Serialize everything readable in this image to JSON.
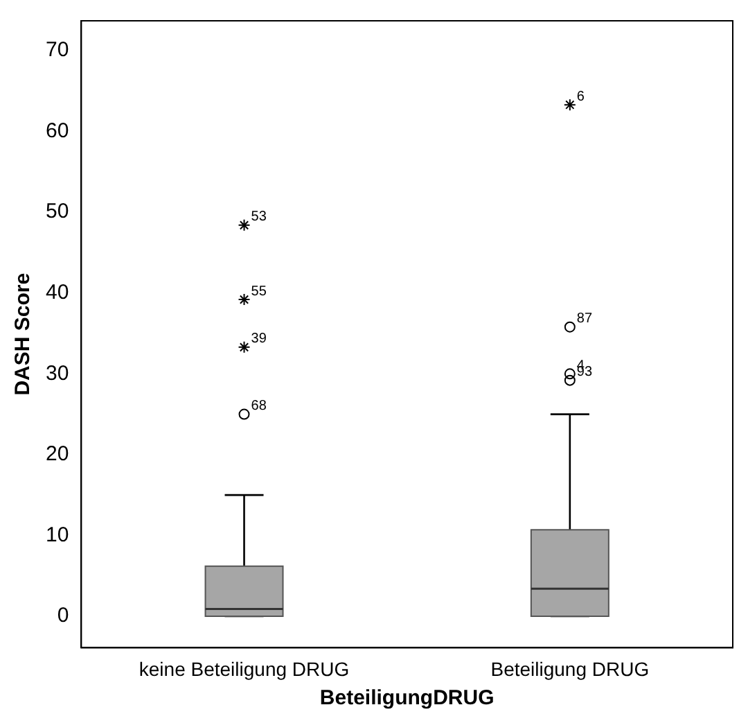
{
  "chart_data": {
    "type": "box",
    "xlabel": "BeteiligungDRUG",
    "ylabel": "DASH Score",
    "categories": [
      "keine Beteiligung DRUG",
      "Beteiligung DRUG"
    ],
    "series": [
      {
        "type": "box",
        "color": "#a6a6a6",
        "boxes": [
          {
            "low": 0,
            "q1": 0,
            "median": 0.9,
            "q3": 6.2,
            "high": 15
          },
          {
            "low": 0,
            "q1": 0,
            "median": 3.4,
            "q3": 10.7,
            "high": 25
          }
        ]
      },
      {
        "type": "scatter",
        "marker": "circle",
        "color": "#000000",
        "x": [
          "keine Beteiligung DRUG",
          "Beteiligung DRUG",
          "Beteiligung DRUG",
          "Beteiligung DRUG"
        ],
        "values": [
          25,
          35.8,
          30,
          29.2
        ]
      },
      {
        "type": "scatter",
        "marker": "cross",
        "color": "#000000",
        "x": [
          "keine Beteiligung DRUG",
          "keine Beteiligung DRUG",
          "keine Beteiligung DRUG",
          "Beteiligung DRUG"
        ],
        "values": [
          48.4,
          39.2,
          33.3,
          63.3
        ]
      }
    ],
    "ylim": [
      -3.9,
      73.7
    ],
    "yticks": [
      0,
      10,
      20,
      30,
      40,
      50,
      60,
      70
    ],
    "grid": false,
    "legend": false,
    "annotations": [
      {
        "text": "53",
        "x": "keine Beteiligung DRUG",
        "y": 48.4
      },
      {
        "text": "55",
        "x": "keine Beteiligung DRUG",
        "y": 39.2
      },
      {
        "text": "39",
        "x": "keine Beteiligung DRUG",
        "y": 33.3
      },
      {
        "text": "68",
        "x": "keine Beteiligung DRUG",
        "y": 25
      },
      {
        "text": "6",
        "x": "Beteiligung DRUG",
        "y": 63.3
      },
      {
        "text": "87",
        "x": "Beteiligung DRUG",
        "y": 35.8
      },
      {
        "text": "4",
        "x": "Beteiligung DRUG",
        "y": 30
      },
      {
        "text": "93",
        "x": "Beteiligung DRUG",
        "y": 29.2
      }
    ]
  }
}
